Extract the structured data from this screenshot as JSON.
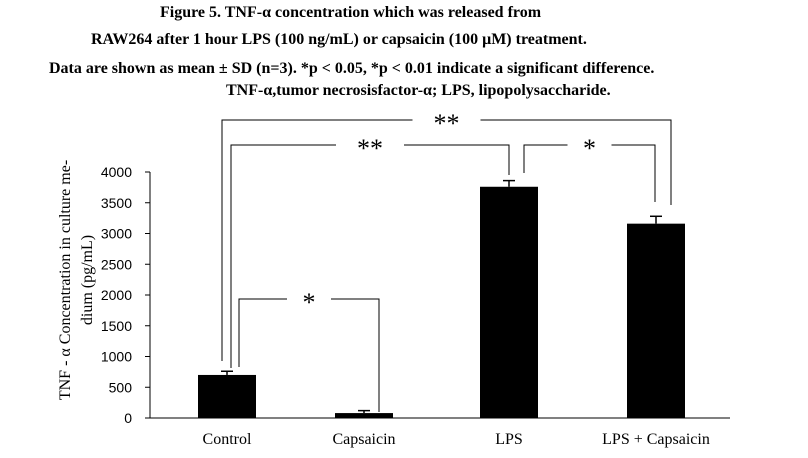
{
  "caption": {
    "line1": "Figure 5. TNF-α concentration which was released from",
    "line2": "RAW264 after 1 hour LPS (100 ng/mL) or capsaicin (100 μM) treatment.",
    "line3": "Data are shown as mean ± SD (n=3). *p < 0.05, *p < 0.01 indicate a significant difference.",
    "line4": "TNF-α,tumor necrosisfactor-α; LPS, lipopolysaccharide."
  },
  "chart_data": {
    "type": "bar",
    "categories": [
      "Control",
      "Capsaicin",
      "LPS",
      "LPS + Capsaicin"
    ],
    "values": [
      700,
      80,
      3760,
      3160
    ],
    "errors": [
      60,
      40,
      100,
      120
    ],
    "ylabel_line1": "TNF - α Concentration in culture me-",
    "ylabel_line2": "dium (pg/mL)",
    "ylim": [
      0,
      4000
    ],
    "yticks": [
      0,
      500,
      1000,
      1500,
      2000,
      2500,
      3000,
      3500,
      4000
    ],
    "bar_color": "#000000",
    "significance": [
      {
        "from": "Control",
        "to": "Capsaicin",
        "label": "*"
      },
      {
        "from": "Control",
        "to": "LPS",
        "label": "**"
      },
      {
        "from": "LPS",
        "to": "LPS + Capsaicin",
        "label": "*"
      },
      {
        "from": "Control",
        "to": "LPS + Capsaicin",
        "label": "**"
      }
    ]
  }
}
